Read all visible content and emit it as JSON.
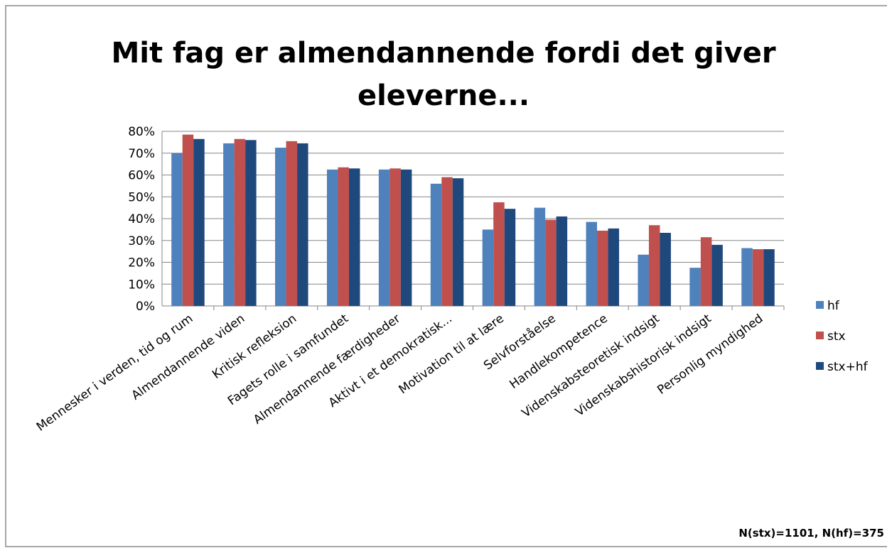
{
  "chart_data": {
    "type": "bar",
    "title_lines": [
      "Mit fag er almendannende fordi det giver",
      "eleverne..."
    ],
    "categories": [
      "Mennesker i verden, tid og rum",
      "Almendannende viden",
      "Kritisk refleksion",
      "Fagets rolle i samfundet",
      "Almendannende færdigheder",
      "Aktivt i et demokratisk...",
      "Motivation til at lære",
      "Selvforståelse",
      "Handlekompetence",
      "Videnskabsteoretisk indsigt",
      "Videnskabshistorisk indsigt",
      "Personlig myndighed"
    ],
    "series": [
      {
        "name": "hf",
        "color": "#4f81bd",
        "values": [
          70,
          74.5,
          72.5,
          62.5,
          62.5,
          56,
          35,
          45,
          38.5,
          23.5,
          17.5,
          26.5
        ]
      },
      {
        "name": "stx",
        "color": "#c0504d",
        "values": [
          78.5,
          76.5,
          75.5,
          63.5,
          63,
          59,
          47.5,
          39.5,
          34.5,
          37,
          31.5,
          26
        ]
      },
      {
        "name": "stx+hf",
        "color": "#1f497d",
        "values": [
          76.5,
          76,
          74.5,
          63,
          62.5,
          58.5,
          44.5,
          41,
          35.5,
          33.5,
          28,
          26
        ]
      }
    ],
    "ylim": [
      0,
      80
    ],
    "yticks": [
      {
        "value": 0,
        "label": "0%"
      },
      {
        "value": 10,
        "label": "10%"
      },
      {
        "value": 20,
        "label": "20%"
      },
      {
        "value": 30,
        "label": "30%"
      },
      {
        "value": 40,
        "label": "40%"
      },
      {
        "value": 50,
        "label": "50%"
      },
      {
        "value": 60,
        "label": "60%"
      },
      {
        "value": 70,
        "label": "70%"
      },
      {
        "value": 80,
        "label": "80%"
      }
    ],
    "grid": true,
    "legend": "right",
    "note": "N(stx)=1101, N(hf)=375"
  }
}
